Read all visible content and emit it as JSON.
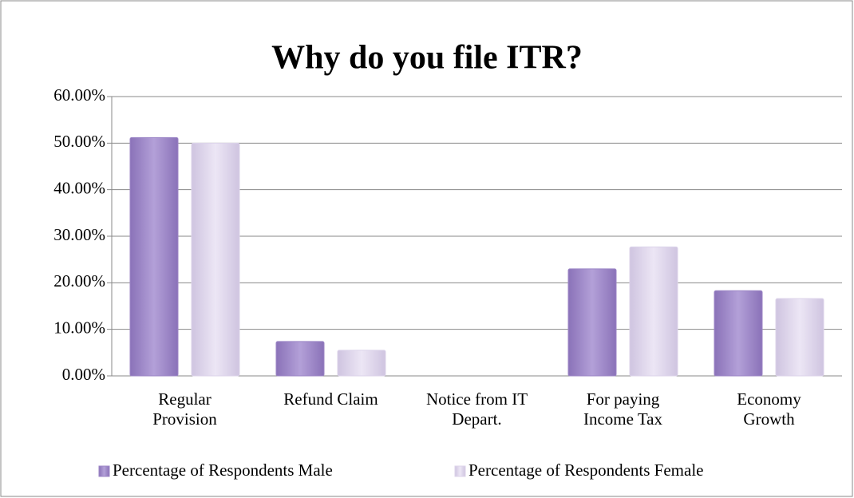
{
  "chart_data": {
    "type": "bar",
    "title": "Why do you file ITR?",
    "categories": [
      "Regular Provision",
      "Refund Claim",
      "Notice from IT Depart.",
      "For paying Income Tax",
      "Economy Growth"
    ],
    "series": [
      {
        "name": "Percentage of Respondents Male",
        "color": "#9c86c6",
        "values": [
          51.2,
          7.4,
          0,
          23,
          18.3
        ]
      },
      {
        "name": "Percentage of Respondents Female",
        "color": "#dcd3ea",
        "values": [
          50,
          5.5,
          0,
          27.7,
          16.6
        ]
      }
    ],
    "ylim": [
      0,
      60
    ],
    "yticks": [
      {
        "value": 0,
        "label": "0.00%"
      },
      {
        "value": 10,
        "label": "10.00%"
      },
      {
        "value": 20,
        "label": "20.00%"
      },
      {
        "value": 30,
        "label": "30.00%"
      },
      {
        "value": 40,
        "label": "40.00%"
      },
      {
        "value": 50,
        "label": "50.00%"
      },
      {
        "value": 60,
        "label": "60.00%"
      }
    ],
    "grid": true,
    "legend": "bottom"
  }
}
